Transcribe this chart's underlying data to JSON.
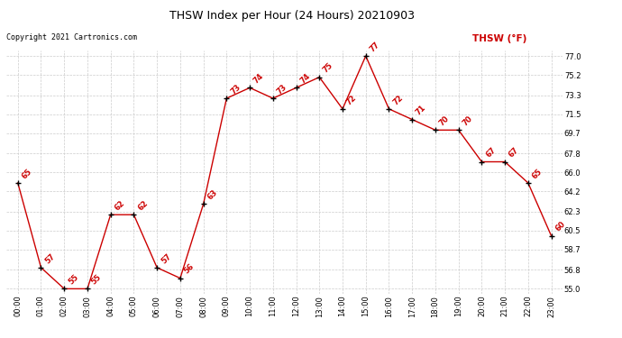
{
  "title": "THSW Index per Hour (24 Hours) 20210903",
  "copyright": "Copyright 2021 Cartronics.com",
  "legend_label": "THSW (°F)",
  "hours": [
    0,
    1,
    2,
    3,
    4,
    5,
    6,
    7,
    8,
    9,
    10,
    11,
    12,
    13,
    14,
    15,
    16,
    17,
    18,
    19,
    20,
    21,
    22,
    23
  ],
  "values": [
    65,
    57,
    55,
    55,
    62,
    62,
    57,
    56,
    63,
    73,
    74,
    73,
    74,
    75,
    72,
    77,
    72,
    71,
    70,
    70,
    67,
    67,
    65,
    60
  ],
  "x_labels": [
    "00:00",
    "01:00",
    "02:00",
    "03:00",
    "04:00",
    "05:00",
    "06:00",
    "07:00",
    "08:00",
    "09:00",
    "10:00",
    "11:00",
    "12:00",
    "13:00",
    "14:00",
    "15:00",
    "16:00",
    "17:00",
    "18:00",
    "19:00",
    "20:00",
    "21:00",
    "22:00",
    "23:00"
  ],
  "y_ticks": [
    55.0,
    56.8,
    58.7,
    60.5,
    62.3,
    64.2,
    66.0,
    67.8,
    69.7,
    71.5,
    73.3,
    75.2,
    77.0
  ],
  "ylim": [
    54.5,
    77.5
  ],
  "line_color": "#cc0000",
  "marker_color": "#000000",
  "label_color": "#cc0000",
  "title_color": "#000000",
  "copyright_color": "#000000",
  "legend_color": "#cc0000",
  "bg_color": "#ffffff",
  "grid_color": "#cccccc",
  "title_fontsize": 9,
  "copyright_fontsize": 6,
  "label_fontsize": 6,
  "tick_fontsize": 6,
  "legend_fontsize": 7.5
}
